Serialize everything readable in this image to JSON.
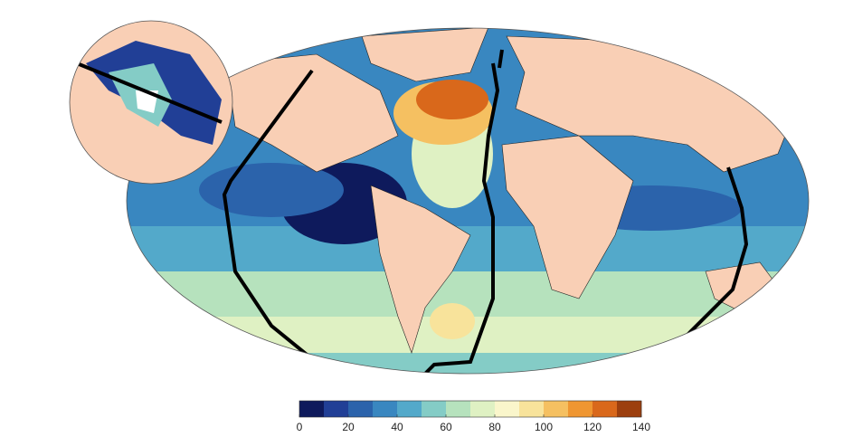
{
  "colorbar": {
    "bins": [
      0,
      10,
      20,
      30,
      40,
      50,
      60,
      70,
      80,
      90,
      100,
      110,
      120,
      130,
      140
    ],
    "colors": [
      "#0e1a5c",
      "#213f96",
      "#2b63ab",
      "#3987c0",
      "#53a9ca",
      "#84ccc6",
      "#b6e2bd",
      "#dff1c3",
      "#faf6cb",
      "#f8e39b",
      "#f5c061",
      "#ef9631",
      "#d9681b",
      "#9c3f0e"
    ],
    "ticks": [
      0,
      20,
      40,
      60,
      80,
      100,
      120,
      140
    ]
  }
}
